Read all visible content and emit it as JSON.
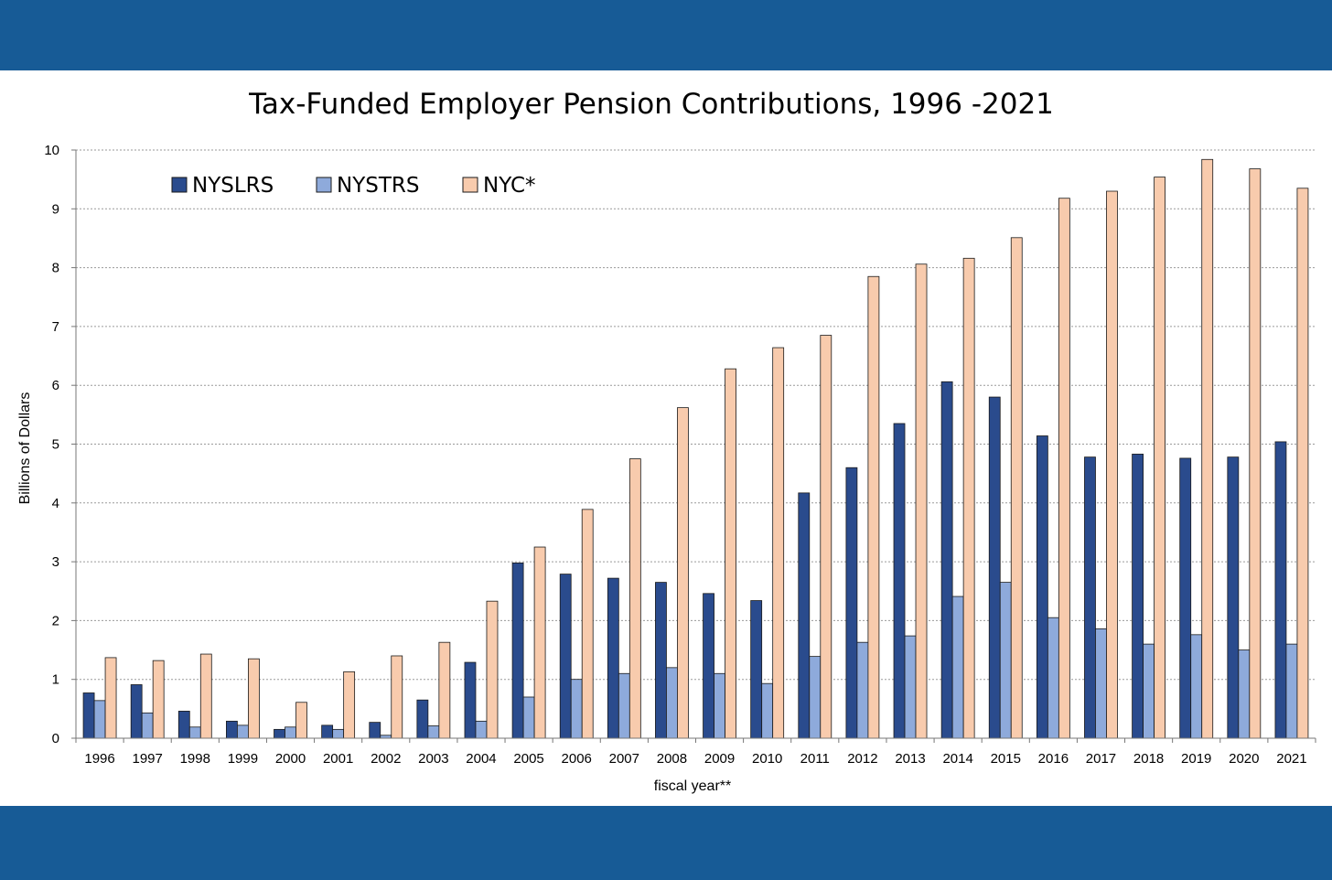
{
  "chart_data": {
    "type": "bar",
    "title": "Tax-Funded Employer Pension Contributions, 1996 -2021",
    "xlabel": "fiscal year**",
    "ylabel": "Billions of Dollars",
    "ylim": [
      0,
      10
    ],
    "yticks": [
      "0",
      "1",
      "2",
      "3",
      "4",
      "5",
      "6",
      "7",
      "8",
      "9",
      "10"
    ],
    "grid": true,
    "legend_position": "top-left",
    "categories": [
      "1996",
      "1997",
      "1998",
      "1999",
      "2000",
      "2001",
      "2002",
      "2003",
      "2004",
      "2005",
      "2006",
      "2007",
      "2008",
      "2009",
      "2010",
      "2011",
      "2012",
      "2013",
      "2014",
      "2015",
      "2016",
      "2017",
      "2018",
      "2019",
      "2020",
      "2021"
    ],
    "series": [
      {
        "name": "NYSLRS",
        "color": "#2a4b8d",
        "values": [
          0.77,
          0.91,
          0.46,
          0.29,
          0.15,
          0.22,
          0.27,
          0.65,
          1.29,
          2.98,
          2.79,
          2.72,
          2.65,
          2.46,
          2.34,
          4.17,
          4.6,
          5.35,
          6.06,
          5.8,
          5.14,
          4.78,
          4.83,
          4.76,
          4.78,
          5.04
        ]
      },
      {
        "name": "NYSTRS",
        "color": "#8eaadb",
        "values": [
          0.64,
          0.43,
          0.19,
          0.22,
          0.19,
          0.15,
          0.05,
          0.21,
          0.29,
          0.7,
          1.0,
          1.1,
          1.2,
          1.1,
          0.93,
          1.39,
          1.63,
          1.74,
          2.41,
          2.65,
          2.05,
          1.86,
          1.6,
          1.76,
          1.5,
          1.6
        ]
      },
      {
        "name": "NYC*",
        "color": "#f8cbad",
        "values": [
          1.37,
          1.32,
          1.43,
          1.35,
          0.61,
          1.13,
          1.4,
          1.63,
          2.33,
          3.25,
          3.89,
          4.75,
          5.62,
          6.28,
          6.64,
          6.85,
          7.85,
          8.06,
          8.16,
          8.51,
          9.18,
          9.3,
          9.54,
          9.84,
          9.68,
          9.35
        ]
      }
    ]
  }
}
